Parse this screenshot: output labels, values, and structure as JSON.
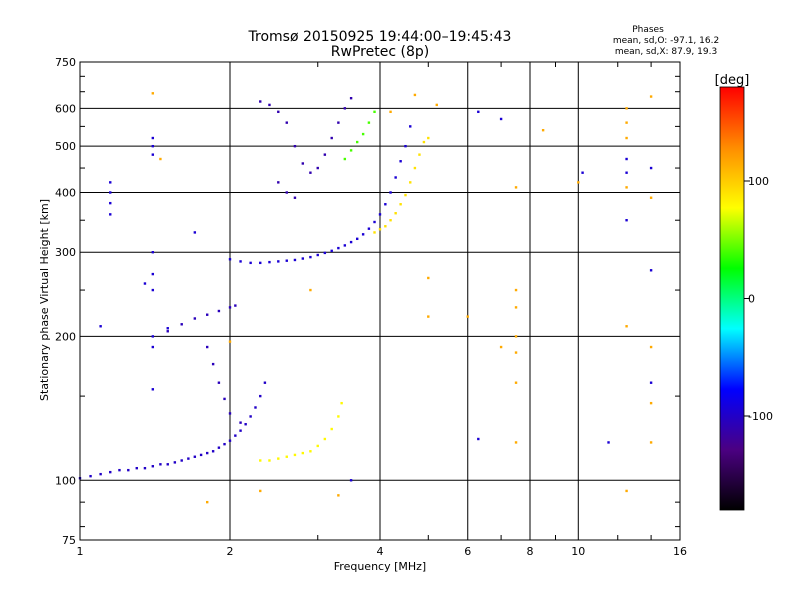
{
  "chart_data": {
    "type": "scatter",
    "title": "Tromsø 20150925 19:44:00–19:45:43",
    "subtitle": "RwPretec (8p)",
    "xlabel": "Frequency [MHz]",
    "ylabel": "Stationary phase Virtual Height [km]",
    "xscale": "log",
    "yscale": "log",
    "xlim": [
      1,
      16
    ],
    "ylim": [
      75,
      750
    ],
    "grid": true,
    "x_ticks": [
      1,
      2,
      4,
      6,
      8,
      10,
      16
    ],
    "x_tick_labels": [
      "1",
      "2",
      "4",
      "6",
      "8",
      "10",
      "16"
    ],
    "x_grid": [
      2,
      4,
      6,
      8,
      10
    ],
    "y_ticks": [
      75,
      100,
      200,
      300,
      400,
      500,
      600,
      750
    ],
    "y_tick_labels": [
      "75",
      "100",
      "200",
      "300",
      "400",
      "500",
      "600",
      "750"
    ],
    "y_grid": [
      100,
      200,
      300,
      400,
      500,
      600
    ],
    "stats": {
      "heading": "Phases",
      "line_o": "mean, sd,O: -97.1, 16.2",
      "line_x": "mean, sd,X:  87.9, 19.3"
    },
    "colorbar": {
      "label": "[deg]",
      "range": [
        -180,
        180
      ],
      "ticks": [
        100,
        0,
        -100
      ],
      "tick_labels": [
        "100",
        "0",
        "-100"
      ],
      "colors": [
        "#000000",
        "#4b0082",
        "#0000ff",
        "#00ffff",
        "#00ff00",
        "#ffff00",
        "#ff8c00",
        "#ff0000"
      ]
    },
    "series": [
      {
        "name": "",
        "kind": "o-trace",
        "phase": -100,
        "points": [
          [
            1.0,
            101
          ],
          [
            1.05,
            102
          ],
          [
            1.1,
            103
          ],
          [
            1.15,
            104
          ],
          [
            1.2,
            105
          ],
          [
            1.25,
            105
          ],
          [
            1.3,
            106
          ],
          [
            1.35,
            106
          ],
          [
            1.4,
            107
          ],
          [
            1.45,
            108
          ],
          [
            1.5,
            108
          ],
          [
            1.55,
            109
          ],
          [
            1.6,
            110
          ],
          [
            1.65,
            111
          ],
          [
            1.7,
            112
          ],
          [
            1.75,
            113
          ],
          [
            1.8,
            114
          ],
          [
            1.85,
            115
          ],
          [
            1.9,
            117
          ],
          [
            1.95,
            119
          ],
          [
            2.0,
            121
          ],
          [
            2.05,
            124
          ],
          [
            2.1,
            127
          ],
          [
            2.15,
            131
          ],
          [
            2.2,
            136
          ],
          [
            2.25,
            142
          ],
          [
            2.3,
            150
          ],
          [
            2.35,
            160
          ]
        ]
      },
      {
        "name": "",
        "kind": "o-cusp",
        "phase": -105,
        "points": [
          [
            1.5,
            205
          ],
          [
            1.6,
            212
          ],
          [
            1.7,
            218
          ],
          [
            1.8,
            222
          ],
          [
            1.9,
            226
          ],
          [
            2.0,
            230
          ],
          [
            2.05,
            232
          ],
          [
            1.8,
            190
          ],
          [
            1.85,
            175
          ],
          [
            1.9,
            160
          ],
          [
            1.95,
            148
          ],
          [
            2.0,
            138
          ],
          [
            2.1,
            132
          ]
        ]
      },
      {
        "name": "",
        "kind": "o-f2-trace",
        "phase": -95,
        "points": [
          [
            2.0,
            290
          ],
          [
            2.1,
            287
          ],
          [
            2.2,
            285
          ],
          [
            2.3,
            285
          ],
          [
            2.4,
            286
          ],
          [
            2.5,
            287
          ],
          [
            2.6,
            288
          ],
          [
            2.7,
            289
          ],
          [
            2.8,
            291
          ],
          [
            2.9,
            293
          ],
          [
            3.0,
            296
          ],
          [
            3.1,
            299
          ],
          [
            3.2,
            302
          ],
          [
            3.3,
            306
          ],
          [
            3.4,
            310
          ],
          [
            3.5,
            315
          ],
          [
            3.6,
            320
          ],
          [
            3.7,
            327
          ],
          [
            3.8,
            336
          ],
          [
            3.9,
            347
          ],
          [
            4.0,
            360
          ],
          [
            4.1,
            378
          ],
          [
            4.2,
            400
          ],
          [
            4.3,
            430
          ],
          [
            4.4,
            465
          ],
          [
            4.5,
            500
          ],
          [
            4.6,
            550
          ]
        ]
      },
      {
        "name": "",
        "kind": "o-upper",
        "phase": -110,
        "points": [
          [
            2.3,
            620
          ],
          [
            2.4,
            610
          ],
          [
            2.5,
            590
          ],
          [
            2.6,
            560
          ],
          [
            2.7,
            500
          ],
          [
            2.8,
            460
          ],
          [
            2.9,
            440
          ],
          [
            3.0,
            450
          ],
          [
            3.1,
            480
          ],
          [
            3.2,
            520
          ],
          [
            3.3,
            560
          ],
          [
            3.4,
            600
          ],
          [
            3.5,
            630
          ],
          [
            2.5,
            420
          ],
          [
            2.6,
            400
          ],
          [
            2.7,
            390
          ]
        ]
      },
      {
        "name": "",
        "kind": "x-f2-trace",
        "phase": 90,
        "points": [
          [
            3.9,
            330
          ],
          [
            4.0,
            335
          ],
          [
            4.1,
            340
          ],
          [
            4.2,
            350
          ],
          [
            4.3,
            362
          ],
          [
            4.4,
            378
          ],
          [
            4.5,
            395
          ],
          [
            4.6,
            420
          ],
          [
            4.7,
            450
          ],
          [
            4.8,
            480
          ],
          [
            4.9,
            510
          ],
          [
            5.0,
            520
          ]
        ]
      },
      {
        "name": "",
        "kind": "x-upper",
        "phase": 40,
        "points": [
          [
            3.4,
            470
          ],
          [
            3.5,
            490
          ],
          [
            3.6,
            510
          ],
          [
            3.7,
            530
          ],
          [
            3.8,
            560
          ],
          [
            3.9,
            590
          ]
        ]
      },
      {
        "name": "",
        "kind": "x-e-trace",
        "phase": 80,
        "points": [
          [
            2.3,
            110
          ],
          [
            2.4,
            110
          ],
          [
            2.5,
            111
          ],
          [
            2.6,
            112
          ],
          [
            2.7,
            113
          ],
          [
            2.8,
            114
          ],
          [
            2.9,
            115
          ],
          [
            3.0,
            118
          ],
          [
            3.1,
            122
          ],
          [
            3.2,
            128
          ],
          [
            3.3,
            136
          ],
          [
            3.35,
            145
          ]
        ]
      },
      {
        "name": "",
        "kind": "sparse",
        "phase": -95,
        "points": [
          [
            1.15,
            400
          ],
          [
            1.15,
            380
          ],
          [
            1.15,
            360
          ],
          [
            1.15,
            420
          ],
          [
            1.4,
            500
          ],
          [
            1.4,
            520
          ],
          [
            1.4,
            480
          ],
          [
            1.4,
            300
          ],
          [
            1.4,
            270
          ],
          [
            1.4,
            250
          ],
          [
            1.4,
            200
          ],
          [
            1.4,
            190
          ],
          [
            1.35,
            258
          ],
          [
            1.1,
            210
          ],
          [
            1.7,
            330
          ],
          [
            1.5,
            208
          ],
          [
            1.4,
            155
          ],
          [
            3.5,
            100
          ],
          [
            6.3,
            590
          ],
          [
            6.3,
            122
          ],
          [
            7.0,
            570
          ],
          [
            12.5,
            470
          ],
          [
            12.5,
            440
          ],
          [
            12.5,
            350
          ],
          [
            14.0,
            450
          ],
          [
            14.0,
            275
          ],
          [
            11.5,
            120
          ],
          [
            10.2,
            440
          ],
          [
            14.0,
            160
          ]
        ]
      },
      {
        "name": "",
        "kind": "sparse-x",
        "phase": 115,
        "points": [
          [
            1.4,
            645
          ],
          [
            1.45,
            470
          ],
          [
            2.0,
            195
          ],
          [
            3.3,
            93
          ],
          [
            1.8,
            90
          ],
          [
            2.3,
            95
          ],
          [
            2.9,
            250
          ],
          [
            5.0,
            265
          ],
          [
            5.0,
            220
          ],
          [
            7.0,
            190
          ],
          [
            7.5,
            250
          ],
          [
            7.5,
            230
          ],
          [
            7.5,
            200
          ],
          [
            7.5,
            185
          ],
          [
            7.5,
            160
          ],
          [
            7.5,
            120
          ],
          [
            7.5,
            410
          ],
          [
            8.5,
            540
          ],
          [
            10.0,
            420
          ],
          [
            12.5,
            600
          ],
          [
            12.5,
            560
          ],
          [
            12.5,
            520
          ],
          [
            12.5,
            410
          ],
          [
            12.5,
            210
          ],
          [
            12.5,
            95
          ],
          [
            14.0,
            390
          ],
          [
            14.0,
            635
          ],
          [
            14.0,
            190
          ],
          [
            14.0,
            145
          ],
          [
            14.0,
            120
          ],
          [
            4.7,
            640
          ],
          [
            5.2,
            610
          ],
          [
            4.2,
            590
          ],
          [
            6.0,
            220
          ]
        ]
      }
    ]
  }
}
